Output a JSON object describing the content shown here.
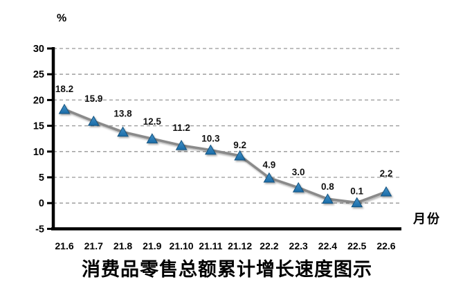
{
  "chart_data": {
    "type": "line",
    "title": "消费品零售总额累计增长速度图示",
    "ylabel": "%",
    "xlabel": "月份",
    "categories": [
      "21.6",
      "21.7",
      "21.8",
      "21.9",
      "21.10",
      "21.11",
      "21.12",
      "22.2",
      "22.3",
      "22.4",
      "22.5",
      "22.6"
    ],
    "values": [
      18.2,
      15.9,
      13.8,
      12.5,
      11.2,
      10.3,
      9.2,
      4.9,
      3.0,
      0.8,
      0.1,
      2.2
    ],
    "data_labels": [
      "18.2",
      "15.9",
      "13.8",
      "12.5",
      "11.2",
      "10.3",
      "9.2",
      "4.9",
      "3.0",
      "0.8",
      "0.1",
      "2.2"
    ],
    "yticks": [
      30,
      25,
      20,
      15,
      10,
      5,
      0,
      -5
    ],
    "ylim": [
      -5,
      30
    ],
    "grid": "horizontal-dashed",
    "legend": "none",
    "marker": "triangle-up",
    "colors": {
      "marker_top": "#4693C8",
      "marker_bottom": "#1A6CA8",
      "marker_edge": "#14537F",
      "line": "#8A8A8A",
      "grid": "#969696",
      "axis": "#000000",
      "background": "#ffffff"
    }
  }
}
